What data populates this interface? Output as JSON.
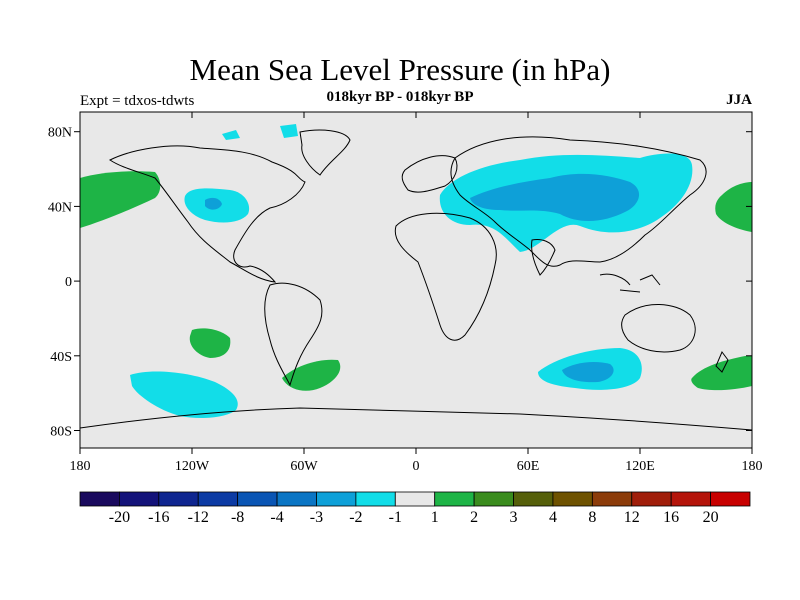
{
  "title": "Mean Sea Level Pressure (in hPa)",
  "subtitle": "018kyr BP - 018kyr BP",
  "expt_label": "Expt = tdxos-tdwts",
  "season": "JJA",
  "map": {
    "background_color": "#e8e8e8",
    "lon_ticks": [
      "180",
      "120W",
      "60W",
      "0",
      "60E",
      "120E",
      "180"
    ],
    "lat_ticks": [
      "80N",
      "40N",
      "0",
      "40S",
      "80S"
    ]
  },
  "colorbar": {
    "colors": [
      "#1a0a5e",
      "#14137a",
      "#0f2690",
      "#0c3ba4",
      "#0a55b4",
      "#0b75c4",
      "#0ea0d8",
      "#12dde8",
      "#e8e8e8",
      "#1eb446",
      "#3a8c1e",
      "#555f0a",
      "#6e5200",
      "#8c3c0a",
      "#a01e0a",
      "#b4140a",
      "#c80000"
    ],
    "labels": [
      "-20",
      "-16",
      "-12",
      "-8",
      "-4",
      "-3",
      "-2",
      "-1",
      "1",
      "2",
      "3",
      "4",
      "8",
      "12",
      "16",
      "20"
    ]
  },
  "anomaly_regions": [
    {
      "name": "central-asia-low",
      "color": "#12dde8"
    },
    {
      "name": "central-asia-core",
      "color": "#0ea0d8"
    },
    {
      "name": "north-america-low",
      "color": "#12dde8"
    },
    {
      "name": "north-america-core",
      "color": "#0ea0d8"
    },
    {
      "name": "south-pacific-low",
      "color": "#12dde8"
    },
    {
      "name": "south-indian-low",
      "color": "#12dde8"
    },
    {
      "name": "south-indian-core",
      "color": "#0ea0d8"
    },
    {
      "name": "ne-pacific-high",
      "color": "#1eb446"
    },
    {
      "name": "nw-pacific-high",
      "color": "#1eb446"
    },
    {
      "name": "se-pacific-high",
      "color": "#1eb446"
    },
    {
      "name": "south-atlantic-high",
      "color": "#1eb446"
    },
    {
      "name": "tasman-high",
      "color": "#1eb446"
    }
  ]
}
